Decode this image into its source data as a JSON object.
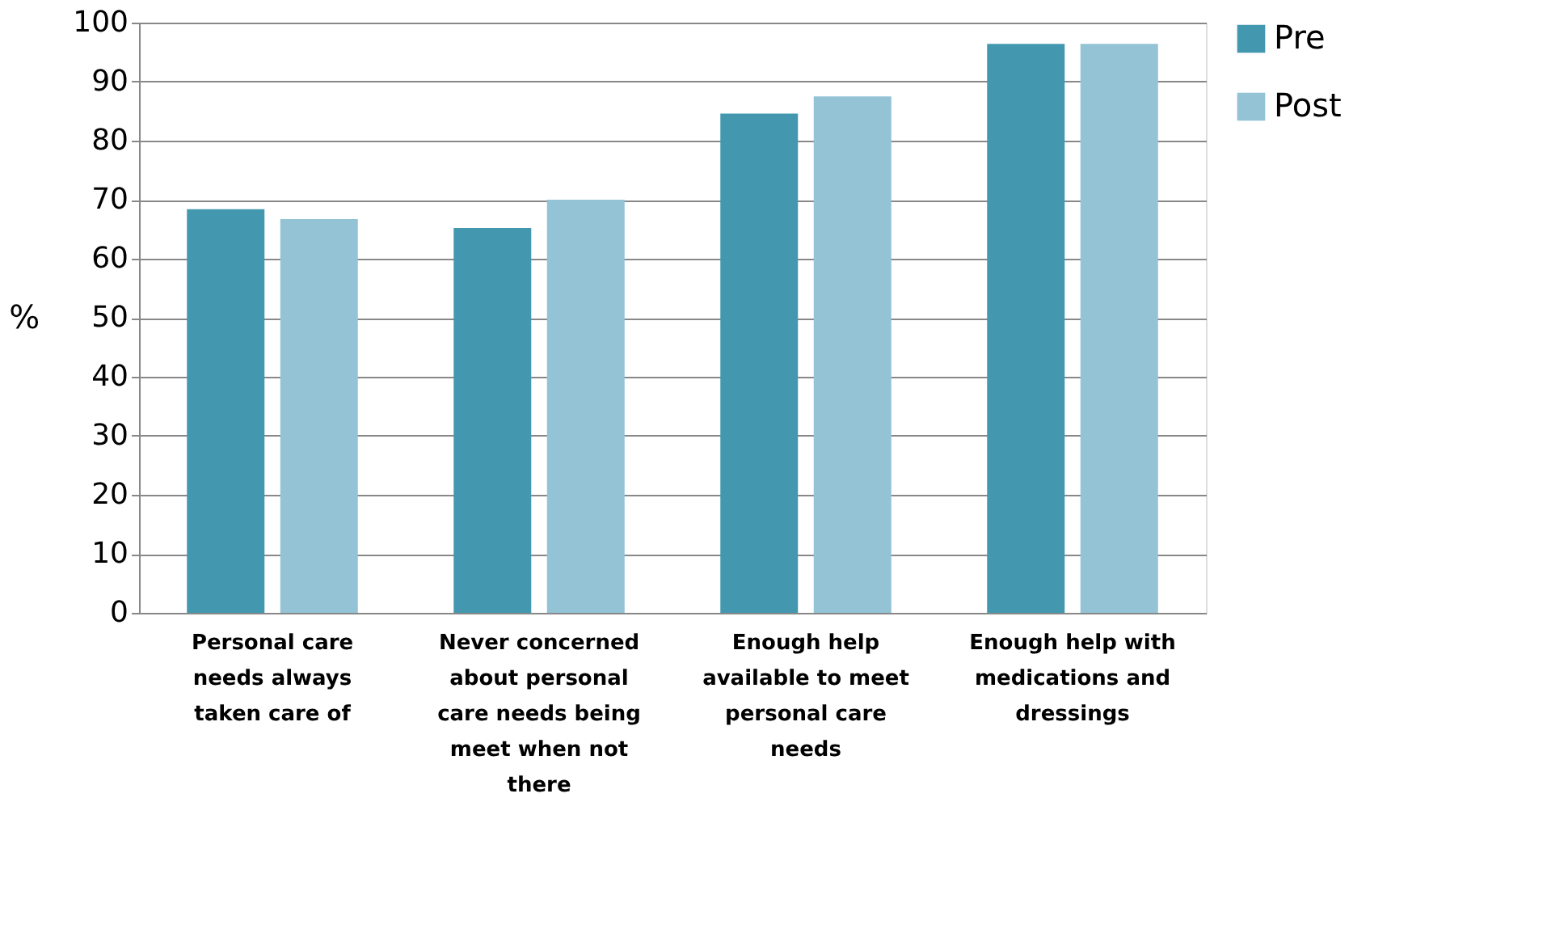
{
  "chart_data": {
    "type": "bar",
    "ylabel": "%",
    "categories": [
      "Personal care needs always taken care of",
      "Never concerned about personal care needs being meet when not there",
      "Enough help available to meet personal care needs",
      "Enough help with medications and dressings"
    ],
    "series": [
      {
        "name": "Pre",
        "color": "#4398b0",
        "values": [
          68.4,
          65.2,
          84.6,
          96.4
        ]
      },
      {
        "name": "Post",
        "color": "#93c3d5",
        "values": [
          66.7,
          70.0,
          87.5,
          96.4
        ]
      }
    ],
    "ylim": [
      0,
      100
    ],
    "yticks": [
      0,
      10,
      20,
      30,
      40,
      50,
      60,
      70,
      80,
      90,
      100
    ],
    "grid": "y",
    "legend": "right"
  }
}
